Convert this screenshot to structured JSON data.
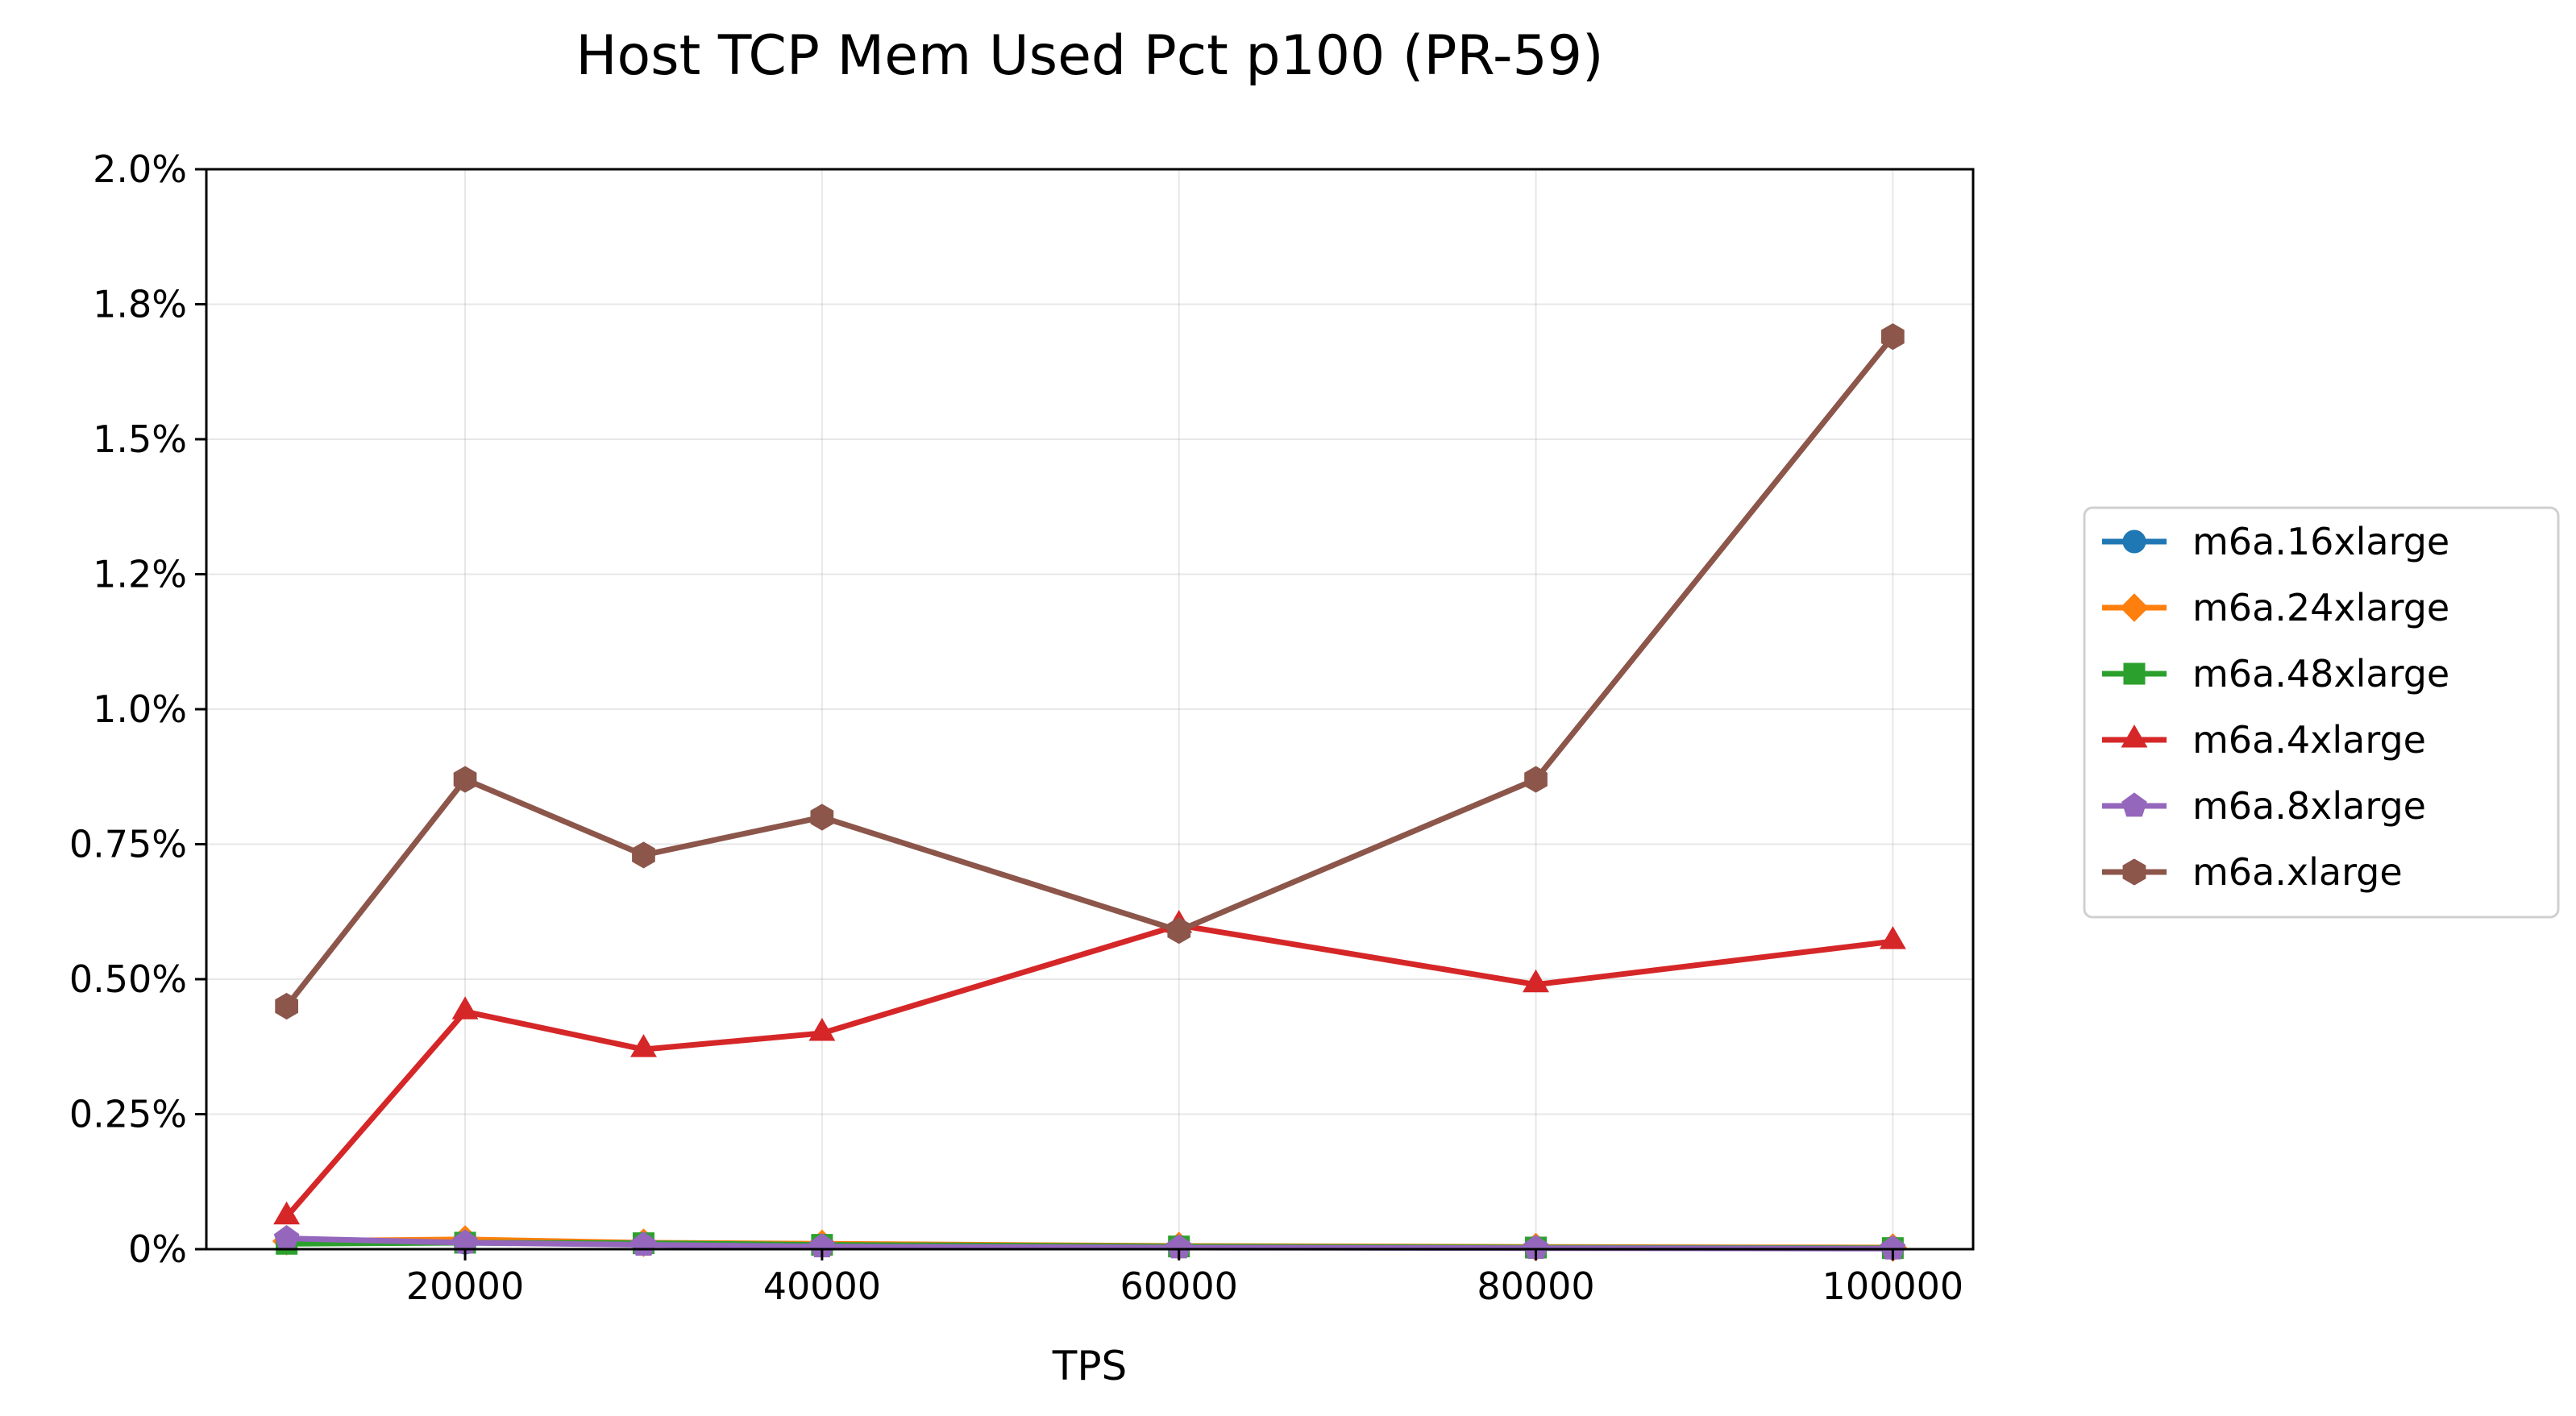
{
  "chart_data": {
    "type": "line",
    "title": "Host TCP Mem Used Pct p100 (PR-59)",
    "xlabel": "TPS",
    "ylabel": "",
    "x": [
      10000,
      20000,
      30000,
      40000,
      60000,
      80000,
      100000
    ],
    "xlim": [
      5500,
      104500
    ],
    "ylim": [
      0,
      0.02
    ],
    "xticks": [
      20000,
      40000,
      60000,
      80000,
      100000
    ],
    "xtick_labels": [
      "20000",
      "40000",
      "60000",
      "80000",
      "100000"
    ],
    "yticks": [
      0,
      0.0025,
      0.005,
      0.0075,
      0.01,
      0.0125,
      0.015,
      0.0175,
      0.02
    ],
    "ytick_labels": [
      "0%",
      "0.25%",
      "0.50%",
      "0.75%",
      "1.0%",
      "1.2%",
      "1.5%",
      "1.8%",
      "2.0%"
    ],
    "grid": true,
    "legend_position": "outside-right",
    "series": [
      {
        "name": "m6a.16xlarge",
        "color": "#1f77b4",
        "marker": "circle",
        "values": [
          0.00015,
          0.00012,
          0.0001,
          8e-05,
          5e-05,
          3e-05,
          2e-05
        ]
      },
      {
        "name": "m6a.24xlarge",
        "color": "#ff7f0e",
        "marker": "diamond",
        "values": [
          0.00015,
          0.00018,
          0.00012,
          0.0001,
          6e-05,
          4e-05,
          3e-05
        ]
      },
      {
        "name": "m6a.48xlarge",
        "color": "#2ca02c",
        "marker": "square",
        "values": [
          0.0001,
          0.00012,
          0.00011,
          8e-05,
          5e-05,
          3e-05,
          2e-05
        ]
      },
      {
        "name": "m6a.4xlarge",
        "color": "#d62728",
        "marker": "triangle",
        "values": [
          0.0006,
          0.0044,
          0.0037,
          0.004,
          0.006,
          0.0049,
          0.0057
        ]
      },
      {
        "name": "m6a.8xlarge",
        "color": "#9467bd",
        "marker": "pentagon",
        "values": [
          0.0002,
          0.00012,
          8e-05,
          5e-05,
          3e-05,
          2e-05,
          1e-05
        ]
      },
      {
        "name": "m6a.xlarge",
        "color": "#8c564b",
        "marker": "hexagon",
        "values": [
          0.0045,
          0.0087,
          0.0073,
          0.008,
          0.0059,
          0.0087,
          0.0169
        ]
      }
    ]
  }
}
